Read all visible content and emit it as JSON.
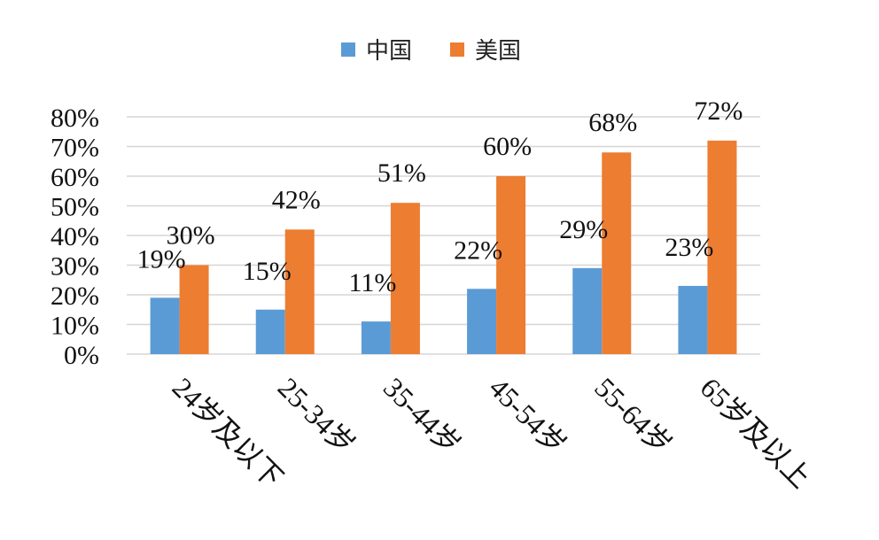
{
  "chart_data": {
    "type": "bar",
    "categories": [
      "24岁及以下",
      "25-34岁",
      "35-44岁",
      "45-54岁",
      "55-64岁",
      "65岁及以上"
    ],
    "series": [
      {
        "name": "中国",
        "values": [
          19,
          15,
          11,
          22,
          29,
          23
        ],
        "color": "#5b9bd5",
        "labels": [
          "19%",
          "15%",
          "11%",
          "22%",
          "29%",
          "23%"
        ]
      },
      {
        "name": "美国",
        "values": [
          30,
          42,
          51,
          60,
          68,
          72
        ],
        "color": "#ed7d31",
        "labels": [
          "30%",
          "42%",
          "51%",
          "60%",
          "68%",
          "72%"
        ]
      }
    ],
    "ylim": [
      0,
      80
    ],
    "yticks": [
      0,
      10,
      20,
      30,
      40,
      50,
      60,
      70,
      80
    ],
    "ytick_labels": [
      "0%",
      "10%",
      "20%",
      "30%",
      "40%",
      "50%",
      "60%",
      "70%",
      "80%"
    ],
    "grid": true,
    "legend_position": "top-center"
  }
}
